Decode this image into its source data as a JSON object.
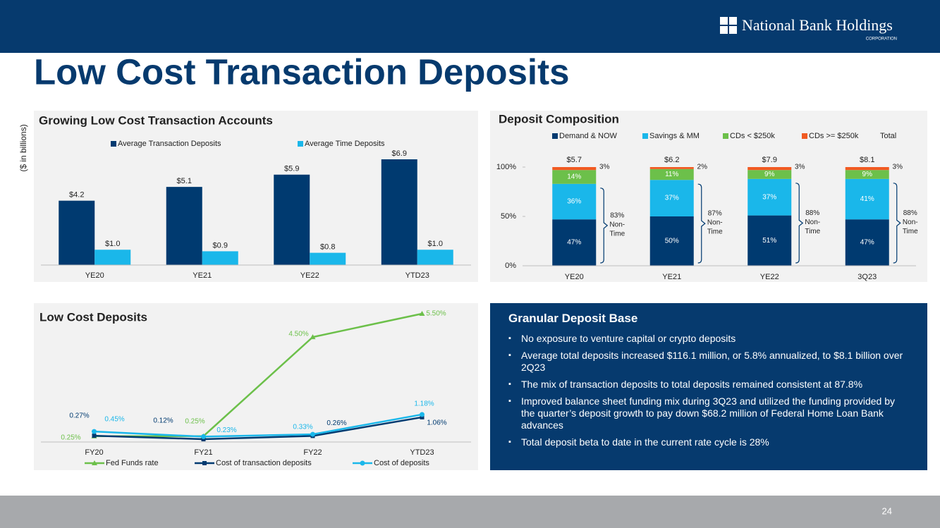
{
  "header": {
    "logo": "National Bank Holdings",
    "logo_sub": "CORPORATION",
    "title": "Low Cost Transaction Deposits"
  },
  "chart_data": [
    {
      "type": "bar",
      "title": "Growing Low Cost Transaction Accounts",
      "axis_label": "($ in billions)",
      "categories": [
        "YE20",
        "YE21",
        "YE22",
        "YTD23"
      ],
      "series": [
        {
          "name": "Average Transaction Deposits",
          "color": "#003a70",
          "values": [
            4.2,
            5.1,
            5.9,
            6.9
          ],
          "value_labels": [
            "$4.2",
            "$5.1",
            "$5.9",
            "$6.9"
          ]
        },
        {
          "name": "Average Time Deposits",
          "color": "#1ab7ea",
          "values": [
            1.0,
            0.9,
            0.8,
            1.0
          ],
          "value_labels": [
            "$1.0",
            "$0.9",
            "$0.8",
            "$1.0"
          ]
        }
      ]
    },
    {
      "type": "stacked_bar",
      "title": "Deposit Composition",
      "categories": [
        "YE20",
        "YE21",
        "YE22",
        "3Q23"
      ],
      "series": [
        {
          "name": "Demand & NOW",
          "color": "#003a70",
          "values": [
            47,
            50,
            51,
            47
          ],
          "value_labels": [
            "47%",
            "50%",
            "51%",
            "47%"
          ]
        },
        {
          "name": "Savings & MM",
          "color": "#1ab7ea",
          "values": [
            36,
            37,
            37,
            41
          ],
          "value_labels": [
            "36%",
            "37%",
            "37%",
            "41%"
          ]
        },
        {
          "name": "CDs < $250k",
          "color": "#6cc04a",
          "values": [
            14,
            11,
            9,
            9
          ],
          "value_labels": [
            "14%",
            "11%",
            "9%",
            "9%"
          ]
        },
        {
          "name": "CDs >= $250k",
          "color": "#f15a22",
          "values": [
            3,
            2,
            3,
            3
          ],
          "value_labels": [
            "3%",
            "2%",
            "3%",
            "3%"
          ]
        }
      ],
      "total": {
        "name": "Total",
        "values": [
          5.7,
          6.2,
          7.9,
          8.1
        ],
        "value_labels": [
          "$5.7",
          "$6.2",
          "$7.9",
          "$8.1"
        ]
      },
      "annotations": {
        "values": [
          83,
          87,
          88,
          88
        ],
        "value_labels": [
          "83%",
          "87%",
          "88%",
          "88%"
        ],
        "lines": [
          "Non-",
          "Time"
        ]
      },
      "ylim": [
        0,
        100
      ],
      "yticks": [
        {
          "value": 0,
          "label": "0%"
        },
        {
          "value": 50,
          "label": "50%"
        },
        {
          "value": 100,
          "label": "100%"
        }
      ],
      "grid": false
    },
    {
      "type": "line",
      "title": "Low Cost Deposits",
      "categories": [
        "FY20",
        "FY21",
        "FY22",
        "YTD23"
      ],
      "series": [
        {
          "name": "Fed Funds rate",
          "color": "#6cc04a",
          "marker": "triangle",
          "values": [
            0.25,
            0.25,
            4.5,
            5.5
          ],
          "value_labels": [
            "0.25%",
            "0.25%",
            "4.50%",
            "5.50%"
          ]
        },
        {
          "name": "Cost of transaction deposits",
          "color": "#003a70",
          "marker": "square",
          "values": [
            0.27,
            0.12,
            0.26,
            1.06
          ],
          "value_labels": [
            "0.27%",
            "0.12%",
            "0.26%",
            "1.06%"
          ]
        },
        {
          "name": "Cost of deposits",
          "color": "#1ab7ea",
          "marker": "circle",
          "values": [
            0.45,
            0.23,
            0.33,
            1.18
          ],
          "value_labels": [
            "0.45%",
            "0.23%",
            "0.33%",
            "1.18%"
          ]
        }
      ]
    }
  ],
  "text_box": {
    "title": "Granular Deposit Base",
    "bullets": [
      "No exposure to venture capital or crypto deposits",
      "Average total deposits increased $116.1 million, or  5.8% annualized, to $8.1 billion over 2Q23",
      "The mix of transaction deposits to total deposits remained consistent at 87.8%",
      "Improved balance sheet funding mix during 3Q23 and utilized the funding provided by the quarter’s deposit growth to pay down $68.2 million of Federal Home Loan Bank advances",
      "Total deposit beta to date in the current rate cycle is 28%"
    ]
  },
  "page_number": 24
}
